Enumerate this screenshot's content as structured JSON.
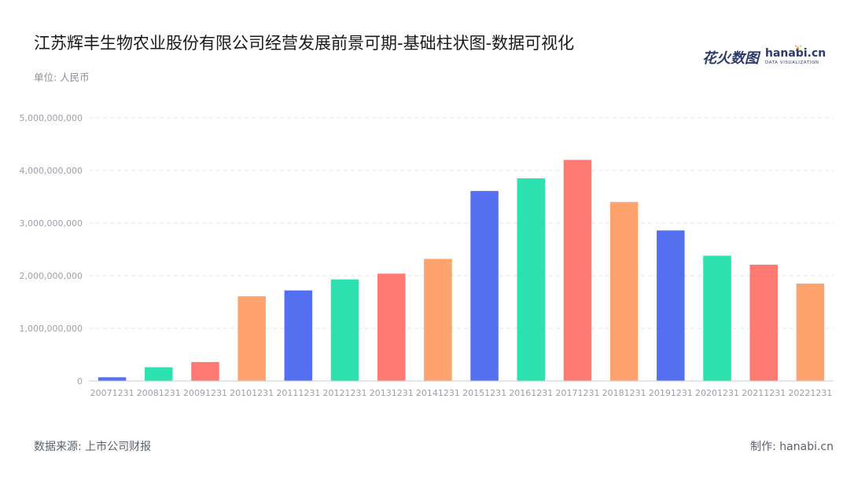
{
  "header": {
    "title": "江苏辉丰生物农业股份有限公司经营发展前景可期-基础柱状图-数据可视化",
    "unit": "单位: 人民币"
  },
  "logo": {
    "cn": "花火数图",
    "en": "hanabi.cn",
    "sub": "DATA VISUALIZATION"
  },
  "footer": {
    "source": "数据来源: 上市公司财报",
    "maker_label": "制作:",
    "maker_value": "hanabi.cn"
  },
  "palette": [
    "#5470f0",
    "#2de2b0",
    "#ff7a72",
    "#ffa36e"
  ],
  "chart_data": {
    "type": "bar",
    "categories": [
      "20071231",
      "20081231",
      "20091231",
      "20101231",
      "20111231",
      "20121231",
      "20131231",
      "20141231",
      "20151231",
      "20161231",
      "20171231",
      "20181231",
      "20191231",
      "20201231",
      "20211231",
      "20221231"
    ],
    "values": [
      70000000,
      260000000,
      360000000,
      1610000000,
      1720000000,
      1930000000,
      2040000000,
      2320000000,
      3610000000,
      3850000000,
      4200000000,
      3400000000,
      2860000000,
      2380000000,
      2210000000,
      1850000000
    ],
    "yticks": [
      0,
      1000000000,
      2000000000,
      3000000000,
      4000000000,
      5000000000
    ],
    "ytick_labels": [
      "0",
      "1,000,000,000",
      "2,000,000,000",
      "3,000,000,000",
      "4,000,000,000",
      "5,000,000,000"
    ],
    "ylim": [
      0,
      5000000000
    ],
    "grid": true
  }
}
